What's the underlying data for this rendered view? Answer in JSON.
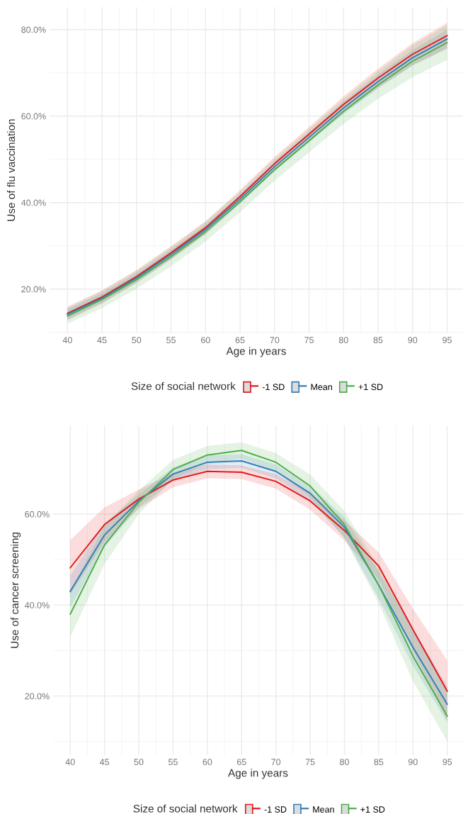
{
  "chart_data": [
    {
      "type": "line",
      "xlabel": "Age in years",
      "ylabel": "Use of flu vaccination",
      "legend_title": "Size of social network",
      "legend": "bottom",
      "grid": true,
      "x": [
        40,
        45,
        50,
        55,
        60,
        65,
        70,
        75,
        80,
        85,
        90,
        95
      ],
      "xlim": [
        37.4,
        97.3
      ],
      "xticks": [
        40,
        45,
        50,
        55,
        60,
        65,
        70,
        75,
        80,
        85,
        90,
        95
      ],
      "ylim": [
        9.8,
        85.2
      ],
      "yticks": [
        {
          "value": 20,
          "label": "20.0%"
        },
        {
          "value": 40,
          "label": "40.0%"
        },
        {
          "value": 60,
          "label": "60.0%"
        },
        {
          "value": 80,
          "label": "80.0%"
        }
      ],
      "series": [
        {
          "name": "-1 SD",
          "color": "#e41a1c",
          "values": [
            14.4,
            18.2,
            22.9,
            28.4,
            34.2,
            41.4,
            49.0,
            55.8,
            62.7,
            68.8,
            74.3,
            78.6
          ],
          "lower": [
            12.8,
            16.7,
            21.4,
            26.9,
            32.7,
            39.9,
            47.4,
            54.1,
            60.8,
            66.6,
            71.7,
            75.6
          ],
          "upper": [
            16.0,
            19.7,
            24.4,
            29.9,
            35.7,
            42.9,
            50.6,
            57.5,
            64.6,
            71.0,
            76.9,
            81.6
          ]
        },
        {
          "name": "Mean",
          "color": "#377eb8",
          "values": [
            14.2,
            17.9,
            22.6,
            28.0,
            33.8,
            40.8,
            48.3,
            55.1,
            61.9,
            68.0,
            73.5,
            77.8
          ],
          "lower": [
            13.0,
            16.8,
            21.5,
            26.9,
            32.7,
            39.7,
            47.2,
            53.9,
            60.5,
            66.4,
            71.7,
            75.6
          ],
          "upper": [
            15.4,
            19.0,
            23.7,
            29.1,
            34.9,
            41.9,
            49.4,
            56.3,
            63.3,
            69.6,
            75.3,
            80.0
          ]
        },
        {
          "name": "+1 SD",
          "color": "#4daf4a",
          "values": [
            13.8,
            17.6,
            22.2,
            27.5,
            33.3,
            40.2,
            47.6,
            54.3,
            61.1,
            67.2,
            72.7,
            77.0
          ],
          "lower": [
            12.0,
            15.6,
            20.1,
            25.3,
            31.0,
            37.8,
            45.1,
            51.6,
            58.2,
            64.0,
            69.0,
            73.0
          ],
          "upper": [
            15.6,
            19.6,
            24.3,
            29.7,
            35.6,
            42.6,
            50.1,
            57.0,
            64.0,
            70.4,
            76.4,
            81.0
          ]
        }
      ]
    },
    {
      "type": "line",
      "xlabel": "Age in years",
      "ylabel": "Use of cancer screening",
      "legend_title": "Size of social network",
      "legend": "bottom",
      "grid": true,
      "x": [
        40,
        45,
        50,
        55,
        60,
        65,
        70,
        75,
        80,
        85,
        90,
        95
      ],
      "xlim": [
        37.5,
        97.3
      ],
      "xticks": [
        40,
        45,
        50,
        55,
        60,
        65,
        70,
        75,
        80,
        85,
        90,
        95
      ],
      "ylim": [
        7.0,
        79.5
      ],
      "yticks": [
        {
          "value": 20,
          "label": "20.0%"
        },
        {
          "value": 40,
          "label": "40.0%"
        },
        {
          "value": 60,
          "label": "60.0%"
        }
      ],
      "series": [
        {
          "name": "-1 SD",
          "color": "#e41a1c",
          "values": [
            48.2,
            57.7,
            63.3,
            67.5,
            69.4,
            69.2,
            67.2,
            62.9,
            56.4,
            48.6,
            34.6,
            21.1
          ],
          "lower": [
            42.4,
            53.9,
            61.2,
            65.9,
            67.9,
            67.7,
            65.6,
            61.0,
            54.2,
            45.6,
            30.0,
            14.6
          ],
          "upper": [
            54.3,
            61.5,
            65.4,
            69.1,
            70.9,
            70.7,
            68.8,
            64.8,
            58.6,
            51.6,
            39.2,
            27.8
          ]
        },
        {
          "name": "Mean",
          "color": "#377eb8",
          "values": [
            43.0,
            55.4,
            62.9,
            68.8,
            71.4,
            71.7,
            69.4,
            64.6,
            57.1,
            44.4,
            30.7,
            18.2
          ],
          "lower": [
            39.5,
            52.8,
            61.5,
            67.3,
            69.9,
            70.2,
            67.9,
            62.9,
            54.9,
            41.4,
            26.7,
            14.2
          ],
          "upper": [
            46.5,
            58.0,
            64.3,
            70.3,
            72.9,
            73.2,
            70.9,
            66.3,
            59.3,
            47.4,
            34.7,
            22.2
          ]
        },
        {
          "name": "+1 SD",
          "color": "#4daf4a",
          "values": [
            38.0,
            53.2,
            62.6,
            69.8,
            73.0,
            74.0,
            71.4,
            66.2,
            57.7,
            44.4,
            28.8,
            15.6
          ],
          "lower": [
            33.0,
            49.0,
            60.0,
            67.7,
            71.0,
            72.2,
            69.4,
            63.7,
            54.7,
            40.4,
            23.3,
            10.0
          ],
          "upper": [
            43.0,
            57.4,
            65.2,
            71.9,
            75.0,
            75.8,
            73.4,
            68.7,
            60.7,
            48.4,
            34.3,
            21.2
          ]
        }
      ]
    }
  ]
}
